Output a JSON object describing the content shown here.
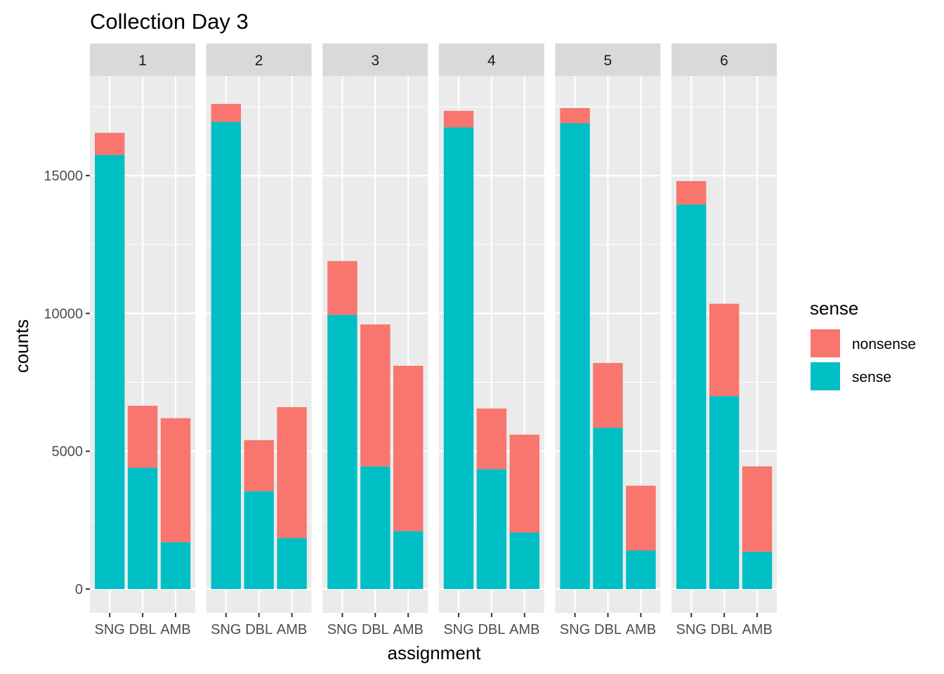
{
  "chart_data": {
    "type": "bar",
    "stacked": true,
    "title": "Collection Day 3",
    "xlabel": "assignment",
    "ylabel": "counts",
    "ylim": [
      -850,
      18000
    ],
    "y_ticks": [
      0,
      5000,
      10000,
      15000
    ],
    "y_tick_labels": [
      "0",
      "5000",
      "10000",
      "15000"
    ],
    "categories": [
      "SNG",
      "DBL",
      "AMB"
    ],
    "legend": {
      "title": "sense",
      "position": "right",
      "entries": [
        {
          "label": "nonsense",
          "color": "#F8766D"
        },
        {
          "label": "sense",
          "color": "#00BFC4"
        }
      ]
    },
    "colors": {
      "nonsense": "#F8766D",
      "sense": "#00BFC4",
      "panel_bg": "#EBEBEB",
      "strip_bg": "#D9D9D9",
      "grid": "#FFFFFF"
    },
    "grid": true,
    "facets": [
      {
        "label": "1",
        "sense": [
          15750,
          4400,
          1700
        ],
        "total": [
          16550,
          6650,
          6200
        ]
      },
      {
        "label": "2",
        "sense": [
          16950,
          3550,
          1850
        ],
        "total": [
          17600,
          5400,
          6600
        ]
      },
      {
        "label": "3",
        "sense": [
          9950,
          4450,
          2100
        ],
        "total": [
          11900,
          9600,
          8100
        ]
      },
      {
        "label": "4",
        "sense": [
          16750,
          4350,
          2050
        ],
        "total": [
          17350,
          6550,
          5600
        ]
      },
      {
        "label": "5",
        "sense": [
          16900,
          5850,
          1400
        ],
        "total": [
          17450,
          8200,
          3750
        ]
      },
      {
        "label": "6",
        "sense": [
          13950,
          7000,
          1350
        ],
        "total": [
          14800,
          10350,
          4450
        ]
      }
    ]
  }
}
